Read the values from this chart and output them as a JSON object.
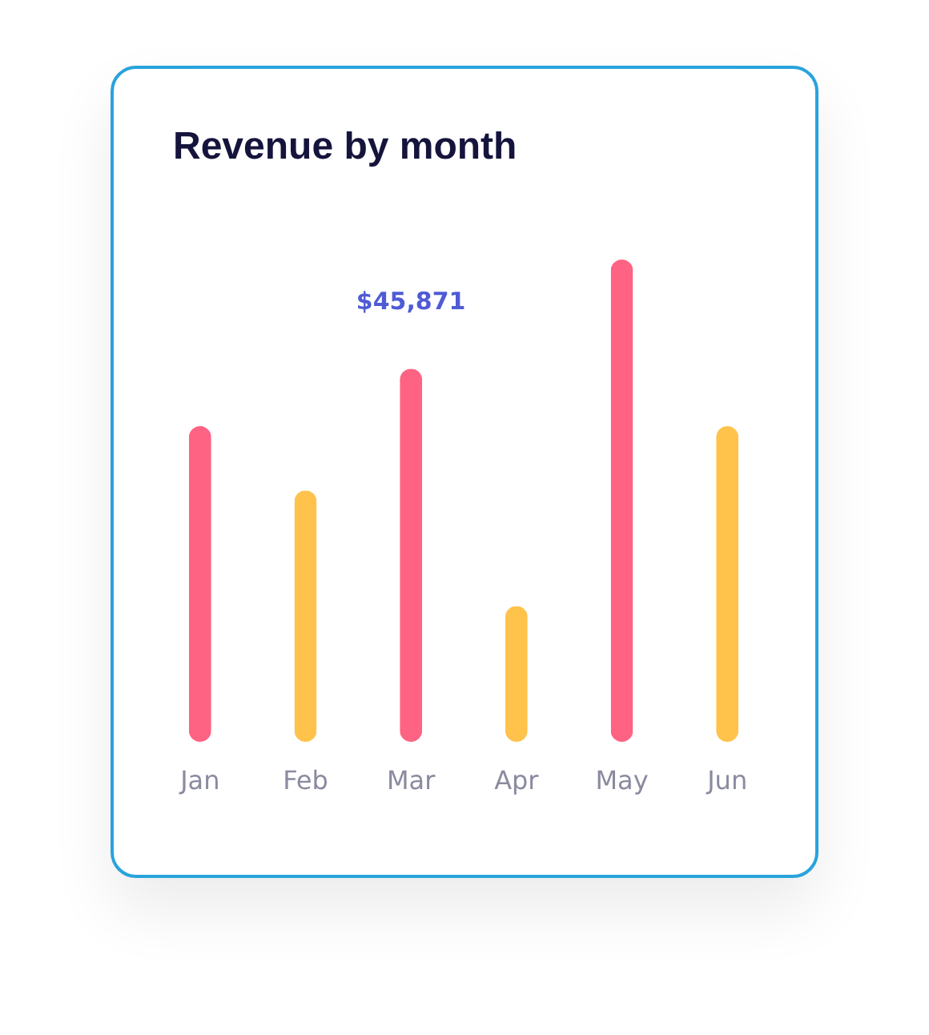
{
  "chart_data": {
    "type": "bar",
    "title": "Revenue by month",
    "categories": [
      "Jan",
      "Feb",
      "Mar",
      "Apr",
      "May",
      "Jun"
    ],
    "values": [
      38800,
      30900,
      45871,
      16700,
      59300,
      38800
    ],
    "colors": [
      "#fe6383",
      "#ffc24b",
      "#fe6383",
      "#ffc24b",
      "#fe6383",
      "#ffc24b"
    ],
    "value_labels": [
      null,
      null,
      "$45,871",
      null,
      null,
      null
    ]
  }
}
